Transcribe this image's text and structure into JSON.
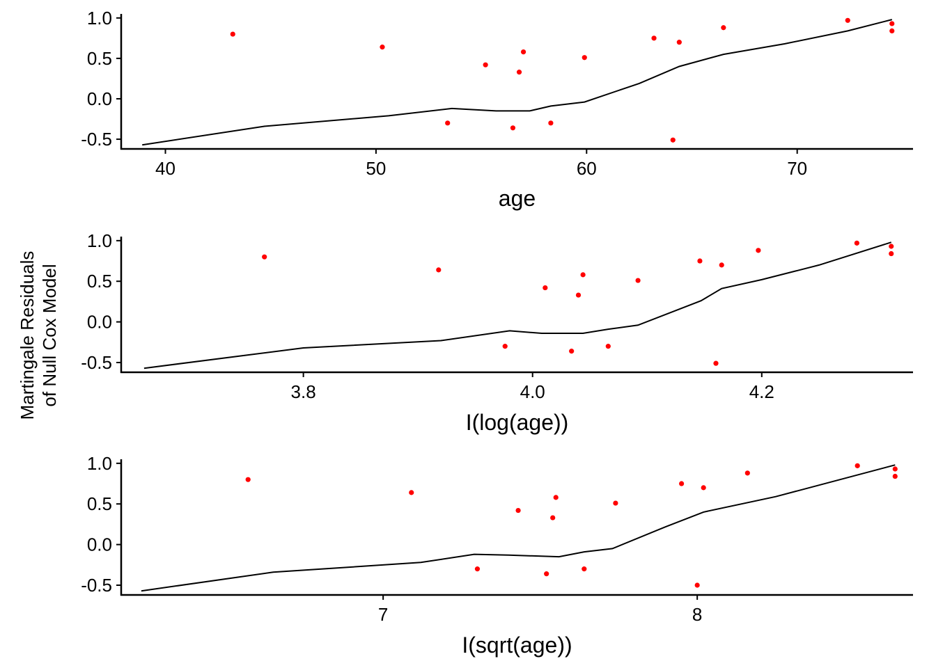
{
  "chart_data": [
    {
      "type": "scatter",
      "xlabel": "age",
      "ylabel": "Martingale Residuals of Null Cox Model",
      "x_ticks": [
        40,
        50,
        60,
        70
      ],
      "y_ticks": [
        -0.5,
        0.0,
        0.5,
        1.0
      ],
      "xlim": [
        37.9,
        75.5
      ],
      "ylim": [
        -0.62,
        1.05
      ],
      "points": [
        {
          "x": 43.2,
          "y": 0.8
        },
        {
          "x": 50.3,
          "y": 0.64
        },
        {
          "x": 53.4,
          "y": -0.3
        },
        {
          "x": 55.2,
          "y": 0.42
        },
        {
          "x": 56.5,
          "y": -0.36
        },
        {
          "x": 56.8,
          "y": 0.33
        },
        {
          "x": 57.0,
          "y": 0.58
        },
        {
          "x": 58.3,
          "y": -0.3
        },
        {
          "x": 59.9,
          "y": 0.51
        },
        {
          "x": 63.2,
          "y": 0.75
        },
        {
          "x": 64.1,
          "y": -0.51
        },
        {
          "x": 64.4,
          "y": 0.7
        },
        {
          "x": 66.5,
          "y": 0.88
        },
        {
          "x": 72.4,
          "y": 0.97
        },
        {
          "x": 74.5,
          "y": 0.93
        },
        {
          "x": 74.5,
          "y": 0.84
        }
      ],
      "smooth": [
        {
          "x": 38.9,
          "y": -0.57
        },
        {
          "x": 44.7,
          "y": -0.34
        },
        {
          "x": 50.6,
          "y": -0.21
        },
        {
          "x": 53.6,
          "y": -0.12
        },
        {
          "x": 55.7,
          "y": -0.15
        },
        {
          "x": 57.3,
          "y": -0.15
        },
        {
          "x": 58.3,
          "y": -0.09
        },
        {
          "x": 59.9,
          "y": -0.04
        },
        {
          "x": 62.5,
          "y": 0.19
        },
        {
          "x": 64.4,
          "y": 0.4
        },
        {
          "x": 66.5,
          "y": 0.55
        },
        {
          "x": 69.4,
          "y": 0.68
        },
        {
          "x": 72.4,
          "y": 0.84
        },
        {
          "x": 74.5,
          "y": 0.98
        }
      ]
    },
    {
      "type": "scatter",
      "xlabel": "I(log(age))",
      "ylabel": "Martingale Residuals of Null Cox Model",
      "x_ticks": [
        3.8,
        4.0,
        4.2
      ],
      "y_ticks": [
        -0.5,
        0.0,
        0.5,
        1.0
      ],
      "xlim": [
        3.641,
        4.332
      ],
      "ylim": [
        -0.62,
        1.05
      ],
      "points": [
        {
          "x": 3.766,
          "y": 0.8
        },
        {
          "x": 3.918,
          "y": 0.64
        },
        {
          "x": 3.976,
          "y": -0.3
        },
        {
          "x": 4.011,
          "y": 0.42
        },
        {
          "x": 4.034,
          "y": -0.36
        },
        {
          "x": 4.04,
          "y": 0.33
        },
        {
          "x": 4.044,
          "y": 0.58
        },
        {
          "x": 4.066,
          "y": -0.3
        },
        {
          "x": 4.092,
          "y": 0.51
        },
        {
          "x": 4.146,
          "y": 0.75
        },
        {
          "x": 4.16,
          "y": -0.51
        },
        {
          "x": 4.165,
          "y": 0.7
        },
        {
          "x": 4.197,
          "y": 0.88
        },
        {
          "x": 4.283,
          "y": 0.97
        },
        {
          "x": 4.313,
          "y": 0.93
        },
        {
          "x": 4.313,
          "y": 0.84
        }
      ],
      "smooth": [
        {
          "x": 3.661,
          "y": -0.57
        },
        {
          "x": 3.8,
          "y": -0.32
        },
        {
          "x": 3.92,
          "y": -0.23
        },
        {
          "x": 3.98,
          "y": -0.11
        },
        {
          "x": 4.008,
          "y": -0.14
        },
        {
          "x": 4.044,
          "y": -0.14
        },
        {
          "x": 4.066,
          "y": -0.09
        },
        {
          "x": 4.092,
          "y": -0.04
        },
        {
          "x": 4.147,
          "y": 0.26
        },
        {
          "x": 4.165,
          "y": 0.41
        },
        {
          "x": 4.2,
          "y": 0.52
        },
        {
          "x": 4.25,
          "y": 0.7
        },
        {
          "x": 4.313,
          "y": 0.98
        }
      ]
    },
    {
      "type": "scatter",
      "xlabel": "I(sqrt(age))",
      "ylabel": "Martingale Residuals of Null Cox Model",
      "x_ticks": [
        7,
        8
      ],
      "y_ticks": [
        -0.5,
        0.0,
        0.5,
        1.0
      ],
      "xlim": [
        6.166,
        8.687
      ],
      "ylim": [
        -0.62,
        1.05
      ],
      "points": [
        {
          "x": 6.57,
          "y": 0.8
        },
        {
          "x": 7.09,
          "y": 0.64
        },
        {
          "x": 7.3,
          "y": -0.3
        },
        {
          "x": 7.43,
          "y": 0.42
        },
        {
          "x": 7.52,
          "y": -0.36
        },
        {
          "x": 7.54,
          "y": 0.33
        },
        {
          "x": 7.55,
          "y": 0.58
        },
        {
          "x": 7.64,
          "y": -0.3
        },
        {
          "x": 7.74,
          "y": 0.51
        },
        {
          "x": 7.95,
          "y": 0.75
        },
        {
          "x": 8.0,
          "y": -0.5
        },
        {
          "x": 8.02,
          "y": 0.7
        },
        {
          "x": 8.16,
          "y": 0.88
        },
        {
          "x": 8.51,
          "y": 0.97
        },
        {
          "x": 8.63,
          "y": 0.93
        },
        {
          "x": 8.63,
          "y": 0.84
        }
      ],
      "smooth": [
        {
          "x": 6.23,
          "y": -0.57
        },
        {
          "x": 6.65,
          "y": -0.34
        },
        {
          "x": 7.12,
          "y": -0.22
        },
        {
          "x": 7.29,
          "y": -0.12
        },
        {
          "x": 7.4,
          "y": -0.13
        },
        {
          "x": 7.56,
          "y": -0.15
        },
        {
          "x": 7.64,
          "y": -0.09
        },
        {
          "x": 7.73,
          "y": -0.05
        },
        {
          "x": 7.9,
          "y": 0.22
        },
        {
          "x": 8.02,
          "y": 0.4
        },
        {
          "x": 8.25,
          "y": 0.59
        },
        {
          "x": 8.63,
          "y": 0.98
        }
      ]
    }
  ],
  "ylabel_lines": [
    "Martingale Residuals",
    "of Null Cox Model"
  ],
  "colors": {
    "points": "#ff0000",
    "smooth": "#000000",
    "axis": "#000000"
  }
}
